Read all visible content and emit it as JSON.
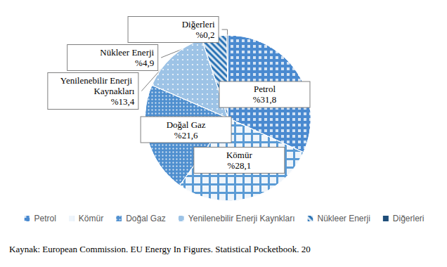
{
  "chart_data": {
    "type": "pie",
    "categories": [
      "Petrol",
      "Kömür",
      "Doğal Gaz",
      "Yenilenebilir Enerji Kaynkları",
      "Nükleer Enerji",
      "Diğerleri"
    ],
    "labels": [
      "Petrol",
      "Kömür",
      "Doğal Gaz",
      "Yenilenebilir Enerji Kaynakları",
      "Nükleer Enerji",
      "Diğerleri"
    ],
    "values": [
      31.8,
      28.1,
      21.6,
      13.4,
      4.9,
      0.2
    ],
    "value_labels": [
      "%31,8",
      "%28,1",
      "%21,6",
      "%13,4",
      "%4,9",
      "%0,2"
    ],
    "colors": [
      "#4a8ad0",
      "#5b9bd5",
      "#4f8fcf",
      "#9dc3e6",
      "#2e75b6",
      "#1f4e79"
    ],
    "data_labels": true,
    "legend": "bottom",
    "source": "Kaynak: European Commission. EU Energy In Figures. Statistical Pocketbook. 20"
  }
}
